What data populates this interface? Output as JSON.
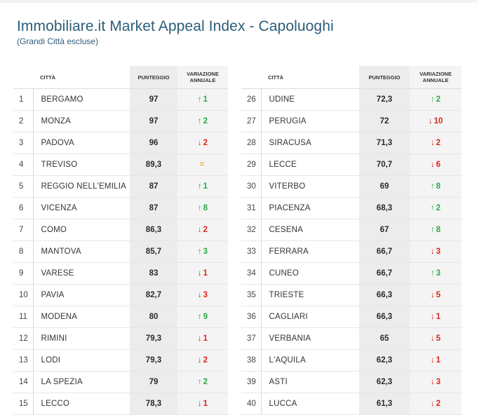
{
  "header": {
    "title": "Immobiliare.it Market Appeal Index - Capoluoghi",
    "subtitle": "(Grandi Città escluse)"
  },
  "columns": {
    "city": "CITTÀ",
    "score": "PUNTEGGIO",
    "variation_line1": "VARIAZIONE",
    "variation_line2": "ANNUALE"
  },
  "colors": {
    "title": "#2c5d7a",
    "up": "#2da84a",
    "down": "#d9261c",
    "equal": "#f0b52b"
  },
  "left_rows": [
    {
      "rank": "1",
      "city": "BERGAMO",
      "score": "97",
      "dir": "up",
      "arrow": "↑",
      "change": "1"
    },
    {
      "rank": "2",
      "city": "MONZA",
      "score": "97",
      "dir": "up",
      "arrow": "↑",
      "change": "2"
    },
    {
      "rank": "3",
      "city": "PADOVA",
      "score": "96",
      "dir": "down",
      "arrow": "↓",
      "change": "2"
    },
    {
      "rank": "4",
      "city": "TREVISO",
      "score": "89,3",
      "dir": "eq",
      "arrow": "=",
      "change": ""
    },
    {
      "rank": "5",
      "city": "REGGIO NELL'EMILIA",
      "score": "87",
      "dir": "up",
      "arrow": "↑",
      "change": "1"
    },
    {
      "rank": "6",
      "city": "VICENZA",
      "score": "87",
      "dir": "up",
      "arrow": "↑",
      "change": "8"
    },
    {
      "rank": "7",
      "city": "COMO",
      "score": "86,3",
      "dir": "down",
      "arrow": "↓",
      "change": "2"
    },
    {
      "rank": "8",
      "city": "MANTOVA",
      "score": "85,7",
      "dir": "up",
      "arrow": "↑",
      "change": "3"
    },
    {
      "rank": "9",
      "city": "VARESE",
      "score": "83",
      "dir": "down",
      "arrow": "↓",
      "change": "1"
    },
    {
      "rank": "10",
      "city": "PAVIA",
      "score": "82,7",
      "dir": "down",
      "arrow": "↓",
      "change": "3"
    },
    {
      "rank": "11",
      "city": "MODENA",
      "score": "80",
      "dir": "up",
      "arrow": "↑",
      "change": "9"
    },
    {
      "rank": "12",
      "city": "RIMINI",
      "score": "79,3",
      "dir": "down",
      "arrow": "↓",
      "change": "1"
    },
    {
      "rank": "13",
      "city": "LODI",
      "score": "79,3",
      "dir": "down",
      "arrow": "↓",
      "change": "2"
    },
    {
      "rank": "14",
      "city": "LA SPEZIA",
      "score": "79",
      "dir": "up",
      "arrow": "↑",
      "change": "2"
    },
    {
      "rank": "15",
      "city": "LECCO",
      "score": "78,3",
      "dir": "down",
      "arrow": "↓",
      "change": "1"
    }
  ],
  "right_rows": [
    {
      "rank": "26",
      "city": "UDINE",
      "score": "72,3",
      "dir": "up",
      "arrow": "↑",
      "change": "2"
    },
    {
      "rank": "27",
      "city": "PERUGIA",
      "score": "72",
      "dir": "down",
      "arrow": "↓",
      "change": "10"
    },
    {
      "rank": "28",
      "city": "SIRACUSA",
      "score": "71,3",
      "dir": "down",
      "arrow": "↓",
      "change": "2"
    },
    {
      "rank": "29",
      "city": "LECCE",
      "score": "70,7",
      "dir": "down",
      "arrow": "↓",
      "change": "6"
    },
    {
      "rank": "30",
      "city": "VITERBO",
      "score": "69",
      "dir": "up",
      "arrow": "↑",
      "change": "8"
    },
    {
      "rank": "31",
      "city": "PIACENZA",
      "score": "68,3",
      "dir": "up",
      "arrow": "↑",
      "change": "2"
    },
    {
      "rank": "32",
      "city": "CESENA",
      "score": "67",
      "dir": "up",
      "arrow": "↑",
      "change": "8"
    },
    {
      "rank": "33",
      "city": "FERRARA",
      "score": "66,7",
      "dir": "down",
      "arrow": "↓",
      "change": "3"
    },
    {
      "rank": "34",
      "city": "CUNEO",
      "score": "66,7",
      "dir": "up",
      "arrow": "↑",
      "change": "3"
    },
    {
      "rank": "35",
      "city": "TRIESTE",
      "score": "66,3",
      "dir": "down",
      "arrow": "↓",
      "change": "5"
    },
    {
      "rank": "36",
      "city": "CAGLIARI",
      "score": "66,3",
      "dir": "down",
      "arrow": "↓",
      "change": "1"
    },
    {
      "rank": "37",
      "city": "VERBANIA",
      "score": "65",
      "dir": "down",
      "arrow": "↓",
      "change": "5"
    },
    {
      "rank": "38",
      "city": "L'AQUILA",
      "score": "62,3",
      "dir": "down",
      "arrow": "↓",
      "change": "1"
    },
    {
      "rank": "39",
      "city": "ASTI",
      "score": "62,3",
      "dir": "down",
      "arrow": "↓",
      "change": "3"
    },
    {
      "rank": "40",
      "city": "LUCCA",
      "score": "61,3",
      "dir": "down",
      "arrow": "↓",
      "change": "2"
    }
  ]
}
